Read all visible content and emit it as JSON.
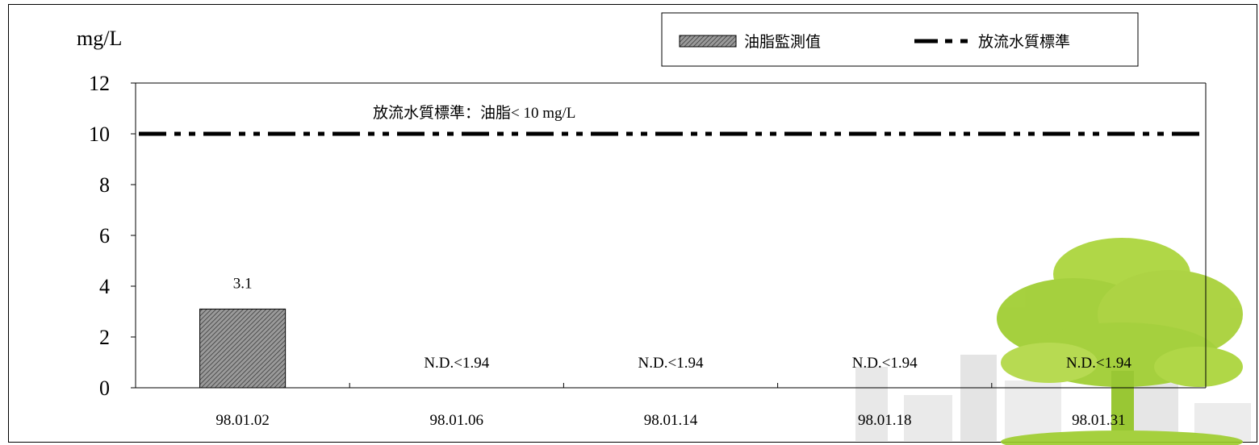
{
  "chart_data": {
    "type": "bar",
    "unit_label": "mg/L",
    "categories": [
      "98.01.02",
      "98.01.06",
      "98.01.14",
      "98.01.18",
      "98.01.31"
    ],
    "series": [
      {
        "name": "油脂監測值",
        "values": [
          3.1,
          null,
          null,
          null,
          null
        ]
      }
    ],
    "data_labels": [
      "3.1",
      "N.D.<1.94",
      "N.D.<1.94",
      "N.D.<1.94",
      "N.D.<1.94"
    ],
    "reference_line": {
      "name": "放流水質標準",
      "value": 10,
      "style": "dash-dot-dot"
    },
    "annotation": "放流水質標準：油脂< 10 mg/L",
    "ylim": [
      0,
      12
    ],
    "yticks": [
      "0",
      "2",
      "4",
      "6",
      "8",
      "10",
      "12"
    ],
    "grid": false,
    "legend_position": "top-right",
    "colors": {
      "bar": "#6b6b6b",
      "line": "#000000",
      "tree": "#9ccc2a"
    }
  }
}
